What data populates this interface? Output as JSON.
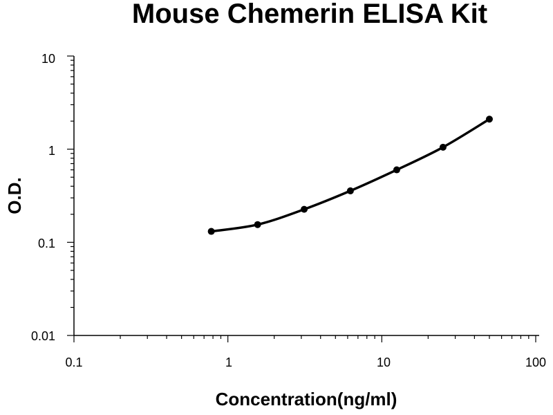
{
  "chart_data": {
    "type": "line",
    "title": "Mouse Chemerin ELISA Kit",
    "xlabel": "Concentration(ng/ml)",
    "ylabel": "O.D.",
    "xscale": "log",
    "yscale": "log",
    "xlim": [
      0.1,
      100
    ],
    "ylim": [
      0.01,
      10
    ],
    "x_tick_labels": [
      "0.1",
      "1",
      "10",
      "100"
    ],
    "y_tick_labels": [
      "0.01",
      "0.1",
      "1",
      "10"
    ],
    "grid": false,
    "legend": "none",
    "series": [
      {
        "x": [
          0.78,
          1.56,
          3.13,
          6.25,
          12.5,
          25,
          50
        ],
        "y": [
          0.131,
          0.155,
          0.226,
          0.357,
          0.6,
          1.05,
          2.1
        ],
        "color": "#000000",
        "marker": "circle",
        "smooth": true
      }
    ]
  }
}
